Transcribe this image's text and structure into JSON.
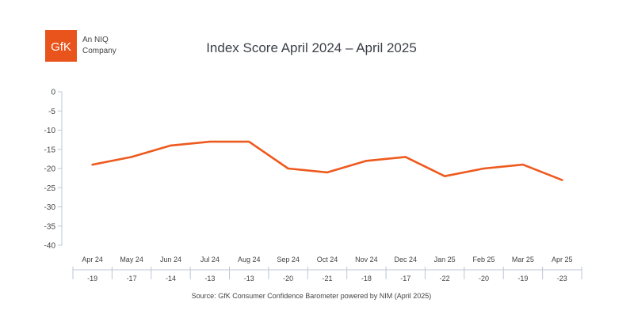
{
  "logo": {
    "mark": "GfK",
    "tagline_line1": "An NIQ",
    "tagline_line2": "Company"
  },
  "colors": {
    "brand": "#e8541c",
    "line": "#ee5a1e",
    "axis": "#bcc6d6",
    "text": "#444444"
  },
  "chart_data": {
    "type": "line",
    "title": "Index Score April 2024 – April 2025",
    "xlabel": "",
    "ylabel": "",
    "categories": [
      "Apr 24",
      "May 24",
      "Jun 24",
      "Jul 24",
      "Aug 24",
      "Sep 24",
      "Oct 24",
      "Nov 24",
      "Dec 24",
      "Jan 25",
      "Feb 25",
      "Mar 25",
      "Apr 25"
    ],
    "series": [
      {
        "values": [
          -19,
          -17,
          -14,
          -13,
          -13,
          -20,
          -21,
          -18,
          -17,
          -22,
          -20,
          -19,
          -23
        ]
      }
    ],
    "value_labels": [
      "-19",
      "-17",
      "-14",
      "-13",
      "-13",
      "-20",
      "-21",
      "-18",
      "-17",
      "-22",
      "-20",
      "-19",
      "-23"
    ],
    "y_ticks": [
      "0",
      "-5",
      "-10",
      "-15",
      "-20",
      "-25",
      "-30",
      "-35",
      "-40"
    ],
    "ylim": [
      -40,
      0
    ],
    "grid": false,
    "legend": "none",
    "source": "Source: GfK Consumer Confidence Barometer powered by NIM (April 2025)"
  }
}
